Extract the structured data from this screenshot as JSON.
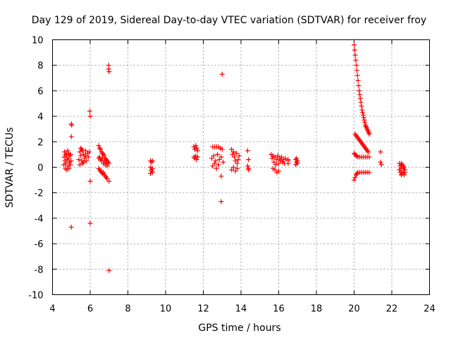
{
  "chart_data": {
    "type": "scatter",
    "title": "Day 129 of 2019, Sidereal Day-to-day VTEC variation (SDTVAR) for receiver froy",
    "xlabel": "GPS time / hours",
    "ylabel": "SDTVAR / TECUs",
    "xlim": [
      4,
      24
    ],
    "ylim": [
      -10,
      10
    ],
    "xticks": [
      "4",
      "6",
      "8",
      "10",
      "12",
      "14",
      "16",
      "18",
      "20",
      "22",
      "24"
    ],
    "yticks": [
      "10",
      "8",
      "6",
      "4",
      "2",
      "0",
      "-2",
      "-4",
      "-6",
      "-8",
      "-10"
    ],
    "grid": true,
    "marker": "+",
    "marker_color": "#ff0000",
    "series": [
      {
        "name": "SDTVAR",
        "points": [
          [
            4.6,
            0.2
          ],
          [
            4.62,
            0.8
          ],
          [
            4.64,
            1.2
          ],
          [
            4.66,
            0.5
          ],
          [
            4.68,
            -0.1
          ],
          [
            4.7,
            1.0
          ],
          [
            4.72,
            0.3
          ],
          [
            4.74,
            0.9
          ],
          [
            4.76,
            -0.2
          ],
          [
            4.78,
            0.6
          ],
          [
            4.8,
            1.3
          ],
          [
            4.82,
            0.1
          ],
          [
            4.84,
            0.7
          ],
          [
            4.86,
            1.1
          ],
          [
            4.88,
            -0.1
          ],
          [
            4.9,
            0.4
          ],
          [
            4.92,
            0.9
          ],
          [
            4.94,
            0.2
          ],
          [
            4.96,
            1.0
          ],
          [
            4.98,
            0.5
          ],
          [
            5.0,
            3.4
          ],
          [
            5.02,
            3.3
          ],
          [
            5.0,
            2.4
          ],
          [
            5.0,
            -4.7
          ],
          [
            5.4,
            0.6
          ],
          [
            5.45,
            1.2
          ],
          [
            5.5,
            0.9
          ],
          [
            5.55,
            1.4
          ],
          [
            5.6,
            0.3
          ],
          [
            5.65,
            1.0
          ],
          [
            5.7,
            0.7
          ],
          [
            5.75,
            1.3
          ],
          [
            5.8,
            0.5
          ],
          [
            5.85,
            1.1
          ],
          [
            5.9,
            0.8
          ],
          [
            5.95,
            1.2
          ],
          [
            5.45,
            0.2
          ],
          [
            5.55,
            0.5
          ],
          [
            5.65,
            0.4
          ],
          [
            5.75,
            0.9
          ],
          [
            5.5,
            1.5
          ],
          [
            5.6,
            1.3
          ],
          [
            5.98,
            4.4
          ],
          [
            6.0,
            4.0
          ],
          [
            6.0,
            -1.1
          ],
          [
            6.0,
            -4.4
          ],
          [
            6.45,
            1.7
          ],
          [
            6.5,
            1.5
          ],
          [
            6.55,
            1.4
          ],
          [
            6.6,
            1.2
          ],
          [
            6.65,
            1.1
          ],
          [
            6.7,
            1.0
          ],
          [
            6.75,
            0.9
          ],
          [
            6.8,
            0.7
          ],
          [
            6.85,
            0.6
          ],
          [
            6.9,
            0.5
          ],
          [
            6.95,
            0.4
          ],
          [
            7.0,
            0.3
          ],
          [
            6.45,
            0.7
          ],
          [
            6.5,
            0.8
          ],
          [
            6.55,
            0.6
          ],
          [
            6.6,
            0.5
          ],
          [
            6.65,
            0.7
          ],
          [
            6.7,
            0.3
          ],
          [
            6.75,
            0.5
          ],
          [
            6.8,
            0.2
          ],
          [
            6.85,
            0.4
          ],
          [
            6.9,
            0.1
          ],
          [
            6.45,
            -0.1
          ],
          [
            6.5,
            -0.2
          ],
          [
            6.55,
            -0.3
          ],
          [
            6.6,
            -0.4
          ],
          [
            6.65,
            -0.5
          ],
          [
            6.7,
            -0.4
          ],
          [
            6.75,
            -0.6
          ],
          [
            6.8,
            -0.7
          ],
          [
            6.85,
            -0.8
          ],
          [
            6.9,
            -0.9
          ],
          [
            7.0,
            -1.1
          ],
          [
            6.98,
            8.0
          ],
          [
            6.98,
            7.7
          ],
          [
            7.0,
            7.5
          ],
          [
            7.0,
            -8.1
          ],
          [
            9.2,
            0.5
          ],
          [
            9.25,
            0.4
          ],
          [
            9.3,
            0.5
          ],
          [
            9.2,
            0.0
          ],
          [
            9.25,
            -0.2
          ],
          [
            9.3,
            -0.4
          ],
          [
            9.2,
            -0.5
          ],
          [
            9.25,
            -0.3
          ],
          [
            9.3,
            -0.1
          ],
          [
            11.5,
            1.6
          ],
          [
            11.55,
            1.4
          ],
          [
            11.6,
            1.7
          ],
          [
            11.65,
            1.5
          ],
          [
            11.7,
            1.3
          ],
          [
            11.5,
            0.8
          ],
          [
            11.55,
            0.7
          ],
          [
            11.6,
            0.9
          ],
          [
            11.65,
            0.6
          ],
          [
            11.7,
            0.8
          ],
          [
            12.5,
            1.6
          ],
          [
            12.6,
            1.6
          ],
          [
            12.7,
            1.6
          ],
          [
            12.8,
            1.6
          ],
          [
            12.9,
            1.5
          ],
          [
            13.0,
            1.4
          ],
          [
            12.45,
            0.7
          ],
          [
            12.55,
            0.9
          ],
          [
            12.65,
            0.5
          ],
          [
            12.75,
            1.0
          ],
          [
            12.85,
            0.6
          ],
          [
            12.95,
            0.8
          ],
          [
            13.05,
            0.4
          ],
          [
            12.5,
            0.1
          ],
          [
            12.6,
            0.3
          ],
          [
            12.7,
            -0.1
          ],
          [
            12.8,
            0.2
          ],
          [
            12.95,
            -0.7
          ],
          [
            12.95,
            -2.7
          ],
          [
            13.0,
            7.3
          ],
          [
            13.5,
            1.4
          ],
          [
            13.55,
            1.0
          ],
          [
            13.6,
            1.2
          ],
          [
            13.65,
            0.8
          ],
          [
            13.7,
            0.5
          ],
          [
            13.75,
            1.1
          ],
          [
            13.8,
            0.3
          ],
          [
            13.85,
            0.6
          ],
          [
            13.9,
            0.9
          ],
          [
            13.5,
            -0.2
          ],
          [
            13.6,
            0.0
          ],
          [
            13.7,
            -0.3
          ],
          [
            13.8,
            -0.1
          ],
          [
            14.35,
            1.3
          ],
          [
            14.4,
            0.6
          ],
          [
            14.35,
            0.1
          ],
          [
            14.4,
            -0.2
          ],
          [
            14.4,
            -0.1
          ],
          [
            15.6,
            1.0
          ],
          [
            15.65,
            0.7
          ],
          [
            15.7,
            0.9
          ],
          [
            15.75,
            0.4
          ],
          [
            15.8,
            0.8
          ],
          [
            15.85,
            0.2
          ],
          [
            15.9,
            0.6
          ],
          [
            15.95,
            0.9
          ],
          [
            16.0,
            0.3
          ],
          [
            16.05,
            0.7
          ],
          [
            16.1,
            0.5
          ],
          [
            16.15,
            0.8
          ],
          [
            16.2,
            0.4
          ],
          [
            16.25,
            0.6
          ],
          [
            16.3,
            0.3
          ],
          [
            16.35,
            0.7
          ],
          [
            15.7,
            -0.1
          ],
          [
            15.8,
            -0.2
          ],
          [
            15.9,
            -0.4
          ],
          [
            16.0,
            -0.3
          ],
          [
            16.5,
            0.6
          ],
          [
            16.5,
            0.3
          ],
          [
            16.5,
            0.5
          ],
          [
            16.9,
            0.6
          ],
          [
            16.95,
            0.4
          ],
          [
            17.0,
            0.5
          ],
          [
            16.9,
            0.2
          ],
          [
            16.95,
            0.7
          ],
          [
            17.0,
            0.3
          ],
          [
            20.0,
            9.6
          ],
          [
            20.03,
            9.2
          ],
          [
            20.06,
            8.8
          ],
          [
            20.09,
            8.4
          ],
          [
            20.12,
            8.0
          ],
          [
            20.15,
            7.6
          ],
          [
            20.18,
            7.2
          ],
          [
            20.21,
            6.8
          ],
          [
            20.24,
            6.4
          ],
          [
            20.27,
            6.0
          ],
          [
            20.3,
            5.7
          ],
          [
            20.33,
            5.4
          ],
          [
            20.36,
            5.1
          ],
          [
            20.39,
            4.8
          ],
          [
            20.42,
            4.5
          ],
          [
            20.45,
            4.3
          ],
          [
            20.48,
            4.1
          ],
          [
            20.51,
            3.9
          ],
          [
            20.54,
            3.7
          ],
          [
            20.57,
            3.5
          ],
          [
            20.6,
            3.3
          ],
          [
            20.63,
            3.2
          ],
          [
            20.66,
            3.1
          ],
          [
            20.69,
            3.0
          ],
          [
            20.72,
            2.9
          ],
          [
            20.75,
            2.8
          ],
          [
            20.78,
            2.7
          ],
          [
            20.81,
            2.6
          ],
          [
            20.05,
            2.6
          ],
          [
            20.1,
            2.5
          ],
          [
            20.15,
            2.4
          ],
          [
            20.2,
            2.3
          ],
          [
            20.25,
            2.2
          ],
          [
            20.3,
            2.1
          ],
          [
            20.35,
            2.0
          ],
          [
            20.4,
            1.9
          ],
          [
            20.45,
            1.8
          ],
          [
            20.5,
            1.7
          ],
          [
            20.55,
            1.6
          ],
          [
            20.6,
            1.5
          ],
          [
            20.65,
            1.4
          ],
          [
            20.7,
            1.3
          ],
          [
            20.75,
            1.2
          ],
          [
            20.0,
            1.1
          ],
          [
            20.05,
            1.0
          ],
          [
            20.1,
            0.9
          ],
          [
            20.15,
            0.9
          ],
          [
            20.2,
            0.8
          ],
          [
            20.3,
            0.8
          ],
          [
            20.4,
            0.8
          ],
          [
            20.5,
            0.8
          ],
          [
            20.6,
            0.8
          ],
          [
            20.7,
            0.8
          ],
          [
            20.8,
            0.8
          ],
          [
            20.0,
            -1.0
          ],
          [
            20.05,
            -0.8
          ],
          [
            20.1,
            -0.6
          ],
          [
            20.15,
            -0.5
          ],
          [
            20.2,
            -0.4
          ],
          [
            20.3,
            -0.4
          ],
          [
            20.4,
            -0.4
          ],
          [
            20.5,
            -0.4
          ],
          [
            20.6,
            -0.4
          ],
          [
            20.7,
            -0.4
          ],
          [
            20.8,
            -0.4
          ],
          [
            21.4,
            1.2
          ],
          [
            21.4,
            0.4
          ],
          [
            21.45,
            0.2
          ],
          [
            22.4,
            0.3
          ],
          [
            22.45,
            0.1
          ],
          [
            22.5,
            -0.1
          ],
          [
            22.55,
            0.2
          ],
          [
            22.6,
            -0.3
          ],
          [
            22.65,
            0.0
          ],
          [
            22.7,
            -0.2
          ],
          [
            22.45,
            -0.4
          ],
          [
            22.55,
            -0.5
          ],
          [
            22.65,
            -0.6
          ],
          [
            22.4,
            -0.2
          ],
          [
            22.5,
            0.3
          ],
          [
            22.6,
            0.1
          ],
          [
            22.7,
            -0.4
          ],
          [
            22.5,
            -0.6
          ],
          [
            22.6,
            -0.1
          ]
        ]
      }
    ]
  }
}
